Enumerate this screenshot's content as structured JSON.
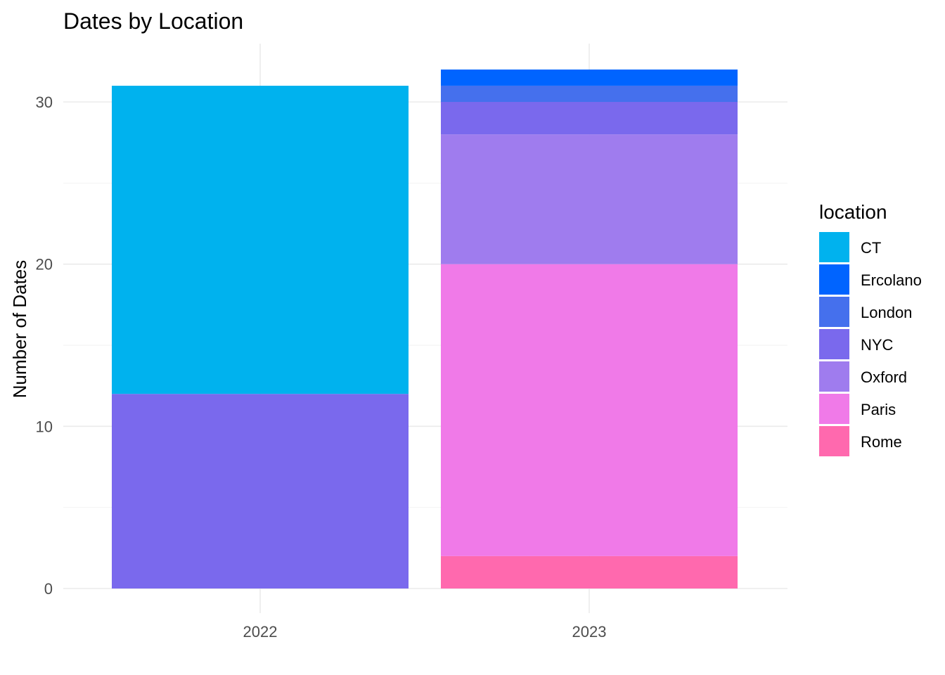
{
  "chart_data": {
    "type": "bar",
    "stacked": true,
    "title": "Dates by Location",
    "xlabel": "",
    "ylabel": "Number of Dates",
    "categories": [
      "2022",
      "2023"
    ],
    "ylim": [
      0,
      33
    ],
    "yticks": [
      0,
      10,
      20,
      30
    ],
    "grid": true,
    "legend_title": "location",
    "legend_position": "right",
    "series": [
      {
        "name": "CT",
        "color": "#00B2EE",
        "values": [
          19,
          0
        ]
      },
      {
        "name": "Ercolano",
        "color": "#0064FF",
        "values": [
          0,
          1
        ]
      },
      {
        "name": "London",
        "color": "#4570ED",
        "values": [
          0,
          1
        ]
      },
      {
        "name": "NYC",
        "color": "#7A69ED",
        "values": [
          12,
          2
        ]
      },
      {
        "name": "Oxford",
        "color": "#9F7CEE",
        "values": [
          0,
          8
        ]
      },
      {
        "name": "Paris",
        "color": "#F07AE8",
        "values": [
          0,
          18
        ]
      },
      {
        "name": "Rome",
        "color": "#FF69AE",
        "values": [
          0,
          2
        ]
      }
    ]
  }
}
